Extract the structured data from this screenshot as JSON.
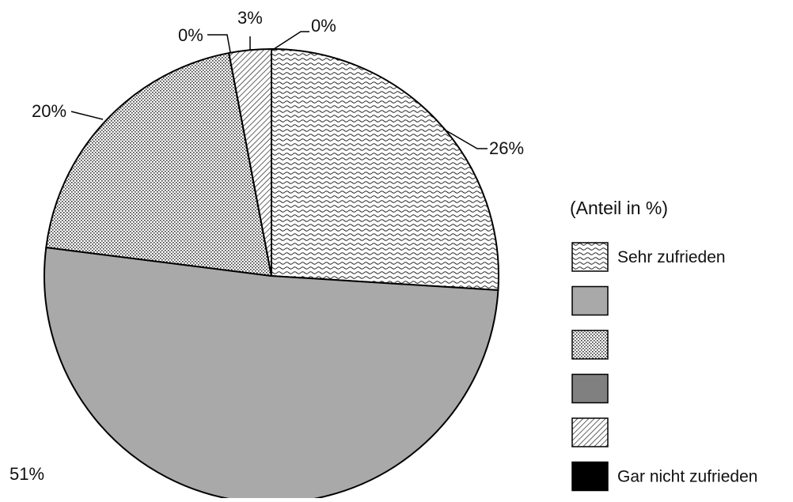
{
  "chart_data": {
    "type": "pie",
    "title": "",
    "legend_title": "(Anteil in %)",
    "legend_position": "right",
    "series": [
      {
        "name": "Sehr zufrieden",
        "value": 26,
        "label": "26%",
        "fill": "wave"
      },
      {
        "name": "",
        "value": 51,
        "label": "51%",
        "fill": "#a9a9a9"
      },
      {
        "name": "",
        "value": 20,
        "label": "20%",
        "fill": "dots"
      },
      {
        "name": "",
        "value": 0,
        "label": "0%",
        "fill": "#808080"
      },
      {
        "name": "",
        "value": 3,
        "label": "3%",
        "fill": "hatch"
      },
      {
        "name": "Gar nicht zufrieden",
        "value": 0,
        "label": "0%",
        "fill": "#000000"
      }
    ]
  }
}
